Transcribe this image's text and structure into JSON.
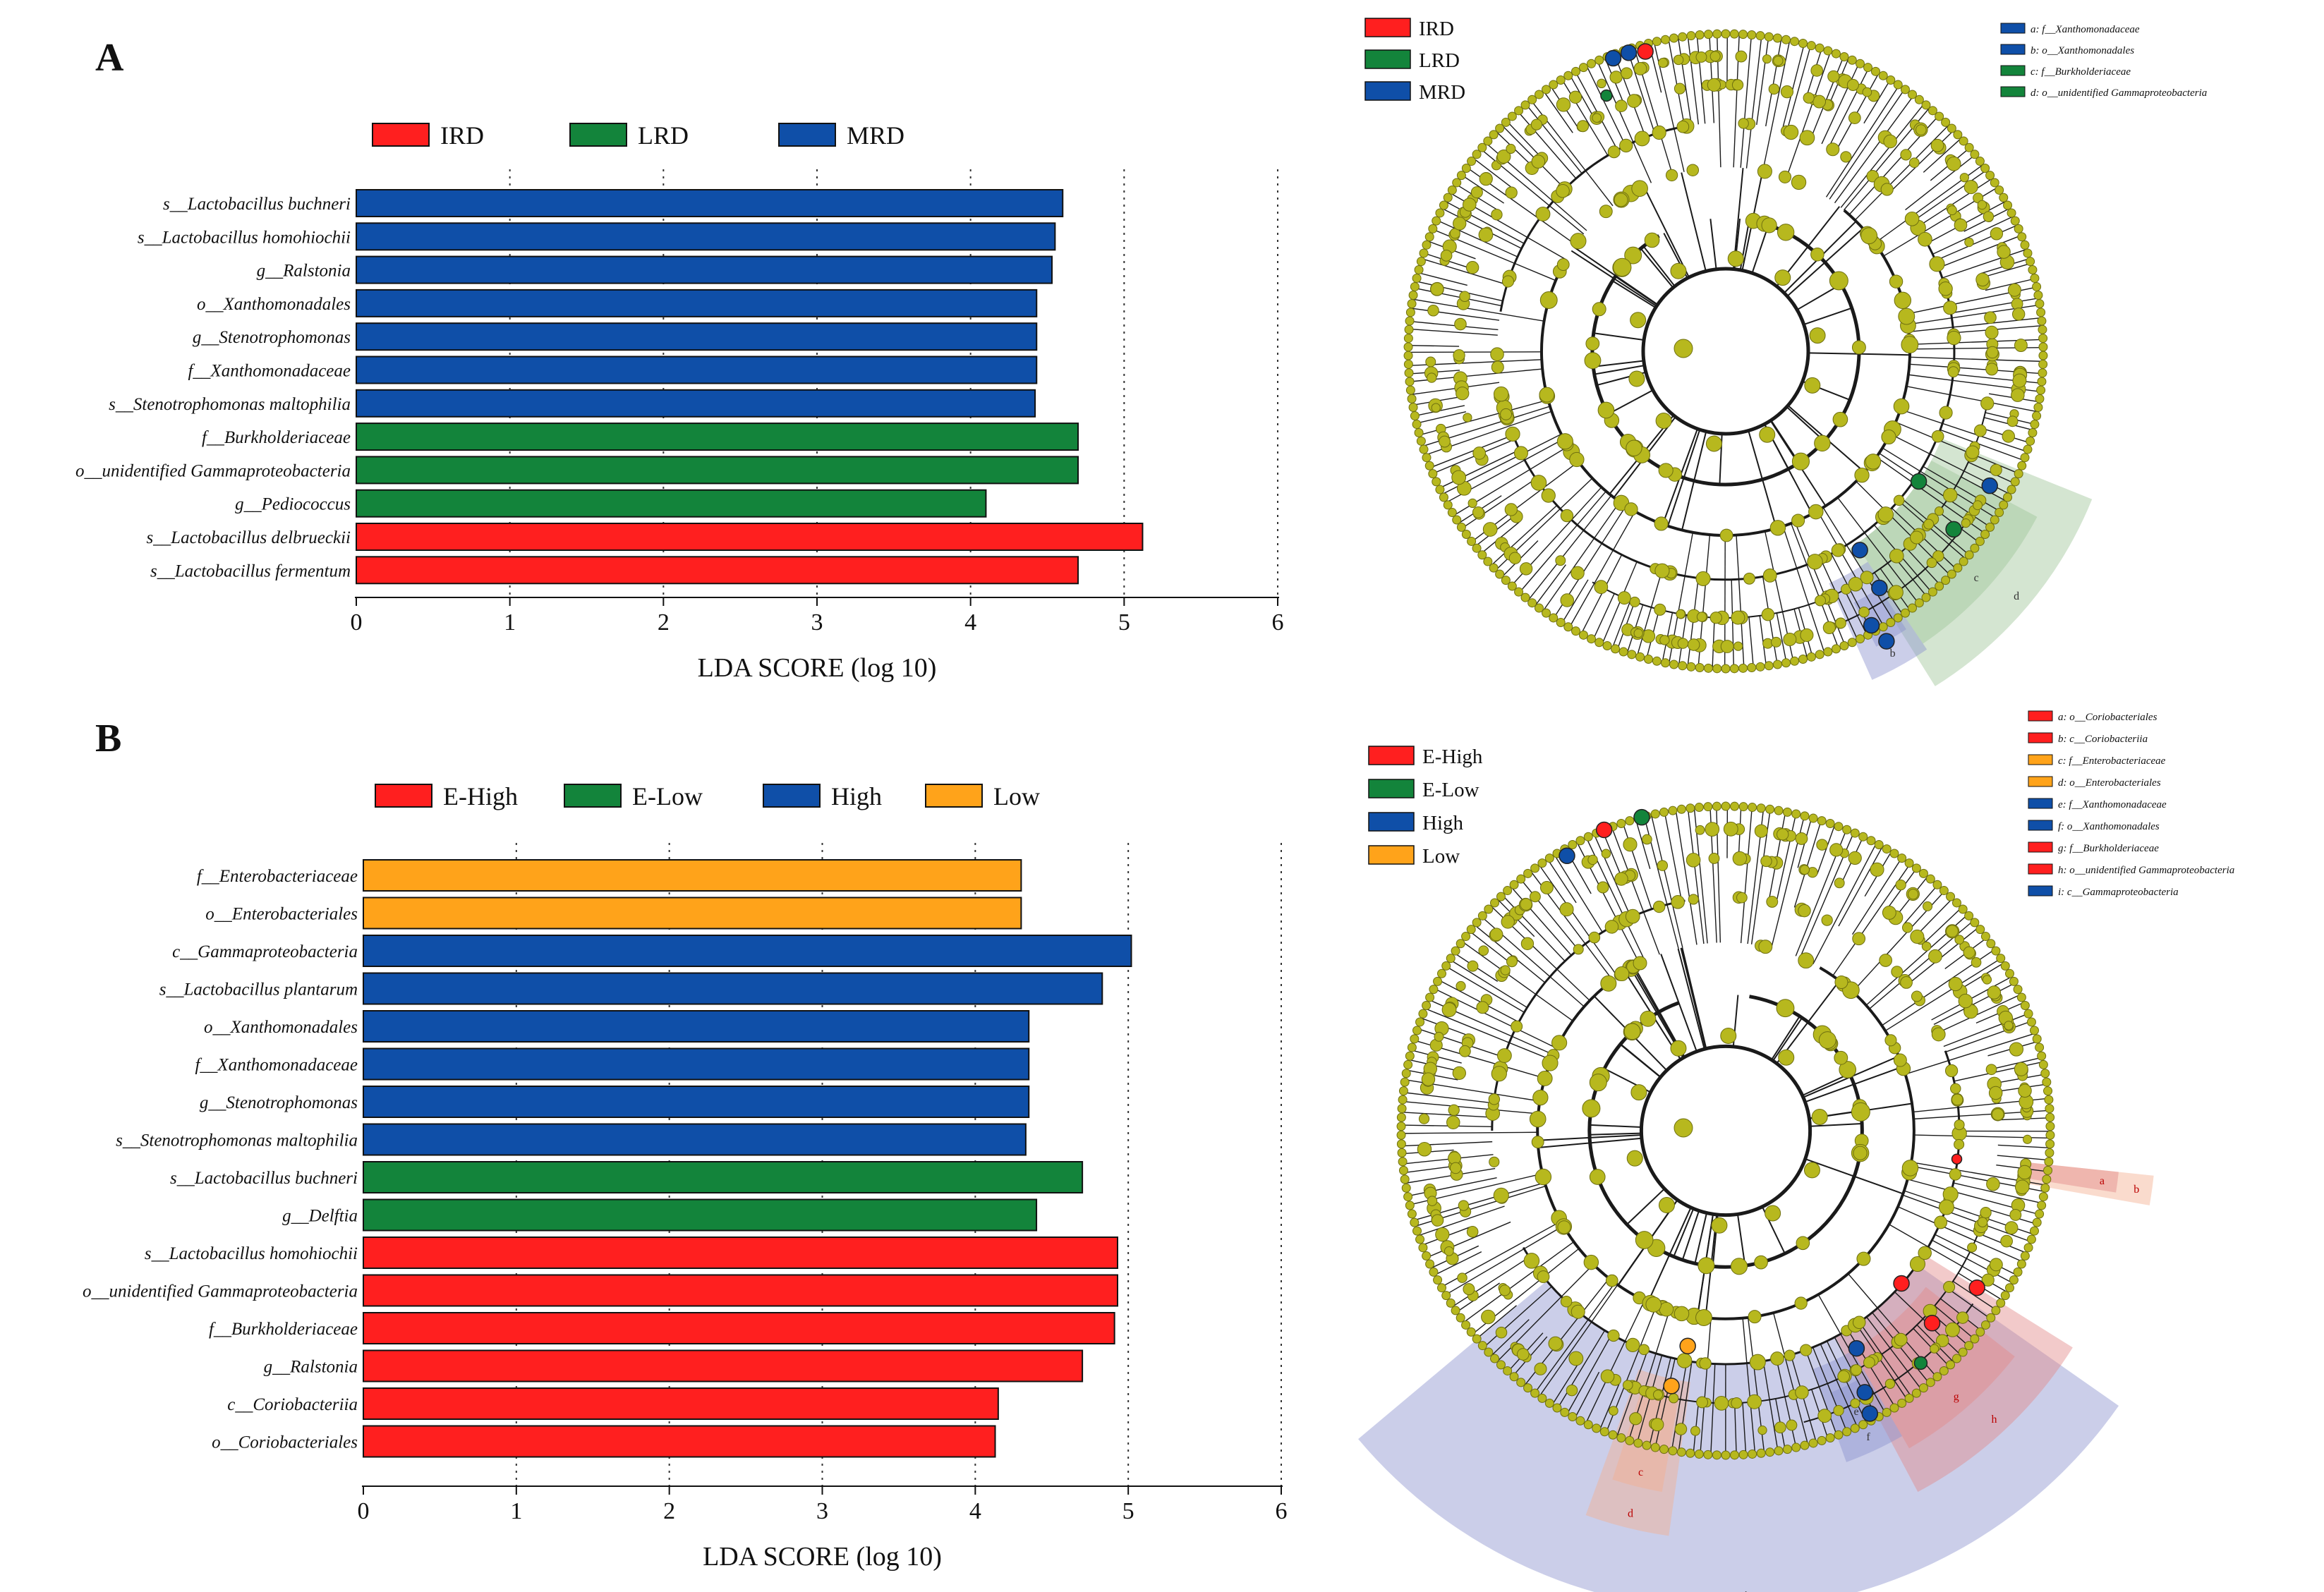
{
  "chart_data": [
    {
      "type": "bar",
      "orientation": "horizontal",
      "panel": "A",
      "xlabel": "LDA SCORE (log 10)",
      "xlim": [
        0,
        6
      ],
      "xticks": [
        "0",
        "1",
        "2",
        "3",
        "4",
        "5",
        "6"
      ],
      "legend": [
        {
          "name": "IRD",
          "color": "#ff1f1f"
        },
        {
          "name": "LRD",
          "color": "#13843b"
        },
        {
          "name": "MRD",
          "color": "#0f4fa8"
        }
      ],
      "categories": [
        "s__Lactobacillus buchneri",
        "s__Lactobacillus homohiochii",
        "g__Ralstonia",
        "o__Xanthomonadales",
        "g__Stenotrophomonas",
        "f__Xanthomonadaceae",
        "s__Stenotrophomonas maltophilia",
        "f__Burkholderiaceae",
        "o__unidentified Gammaproteobacteria",
        "g__Pediococcus",
        "s__Lactobacillus delbrueckii",
        "s__Lactobacillus fermentum"
      ],
      "values": [
        4.6,
        4.55,
        4.53,
        4.43,
        4.43,
        4.43,
        4.42,
        4.7,
        4.7,
        4.1,
        5.12,
        4.7
      ],
      "groups": [
        "MRD",
        "MRD",
        "MRD",
        "MRD",
        "MRD",
        "MRD",
        "MRD",
        "LRD",
        "LRD",
        "LRD",
        "IRD",
        "IRD"
      ]
    },
    {
      "type": "bar",
      "orientation": "horizontal",
      "panel": "B",
      "xlabel": "LDA SCORE (log 10)",
      "xlim": [
        0,
        6
      ],
      "xticks": [
        "0",
        "1",
        "2",
        "3",
        "4",
        "5",
        "6"
      ],
      "legend": [
        {
          "name": "E-High",
          "color": "#ff1f1f"
        },
        {
          "name": "E-Low",
          "color": "#13843b"
        },
        {
          "name": "High",
          "color": "#0f4fa8"
        },
        {
          "name": "Low",
          "color": "#ffa31a"
        }
      ],
      "categories": [
        "f__Enterobacteriaceae",
        "o__Enterobacteriales",
        "c__Gammaproteobacteria",
        "s__Lactobacillus plantarum",
        "o__Xanthomonadales",
        "f__Xanthomonadaceae",
        "g__Stenotrophomonas",
        "s__Stenotrophomonas maltophilia",
        "s__Lactobacillus buchneri",
        "g__Delftia",
        "s__Lactobacillus homohiochii",
        "o__unidentified Gammaproteobacteria",
        "f__Burkholderiaceae",
        "g__Ralstonia",
        "c__Coriobacteriia",
        "o__Coriobacteriales"
      ],
      "values": [
        4.3,
        4.3,
        5.02,
        4.83,
        4.35,
        4.35,
        4.35,
        4.33,
        4.7,
        4.4,
        4.93,
        4.93,
        4.91,
        4.7,
        4.15,
        4.13
      ],
      "groups": [
        "Low",
        "Low",
        "High",
        "High",
        "High",
        "High",
        "High",
        "High",
        "E-Low",
        "E-Low",
        "E-High",
        "E-High",
        "E-High",
        "E-High",
        "E-High",
        "E-High"
      ]
    }
  ],
  "cladograms": [
    {
      "panel": "A",
      "legend": [
        {
          "name": "IRD",
          "color": "#ff1f1f"
        },
        {
          "name": "LRD",
          "color": "#13843b"
        },
        {
          "name": "MRD",
          "color": "#0f4fa8"
        }
      ],
      "labels": [
        {
          "text": "a: f__Xanthomonadaceae",
          "color": "#0f4fa8"
        },
        {
          "text": "b: o__Xanthomonadales",
          "color": "#0f4fa8"
        },
        {
          "text": "c: f__Burkholderiaceae",
          "color": "#13843b"
        },
        {
          "text": "d: o__unidentified Gammaproteobacteria",
          "color": "#13843b"
        }
      ],
      "sector_letters": [
        "a",
        "b",
        "c",
        "d"
      ]
    },
    {
      "panel": "B",
      "legend": [
        {
          "name": "E-High",
          "color": "#ff1f1f"
        },
        {
          "name": "E-Low",
          "color": "#13843b"
        },
        {
          "name": "High",
          "color": "#0f4fa8"
        },
        {
          "name": "Low",
          "color": "#ffa31a"
        }
      ],
      "labels": [
        {
          "text": "a: o__Coriobacteriales",
          "color": "#ff1f1f"
        },
        {
          "text": "b: c__Coriobacteriia",
          "color": "#ff1f1f"
        },
        {
          "text": "c: f__Enterobacteriaceae",
          "color": "#ffa31a"
        },
        {
          "text": "d: o__Enterobacteriales",
          "color": "#ffa31a"
        },
        {
          "text": "e: f__Xanthomonadaceae",
          "color": "#0f4fa8"
        },
        {
          "text": "f: o__Xanthomonadales",
          "color": "#0f4fa8"
        },
        {
          "text": "g: f__Burkholderiaceae",
          "color": "#ff1f1f"
        },
        {
          "text": "h: o__unidentified Gammaproteobacteria",
          "color": "#ff1f1f"
        },
        {
          "text": "i: c__Gammaproteobacteria",
          "color": "#0f4fa8"
        }
      ],
      "sector_letters": [
        "a",
        "b",
        "c",
        "d",
        "e",
        "f",
        "g",
        "h",
        "i"
      ]
    }
  ],
  "colors": {
    "node": "#b7b81e",
    "node_stroke": "#6e6f10",
    "branch": "#1a1a1a",
    "sector_blue": "#8c93cf",
    "sector_green": "#9fc69a",
    "sector_red": "#e38a8a",
    "sector_orange": "#f4b090"
  }
}
